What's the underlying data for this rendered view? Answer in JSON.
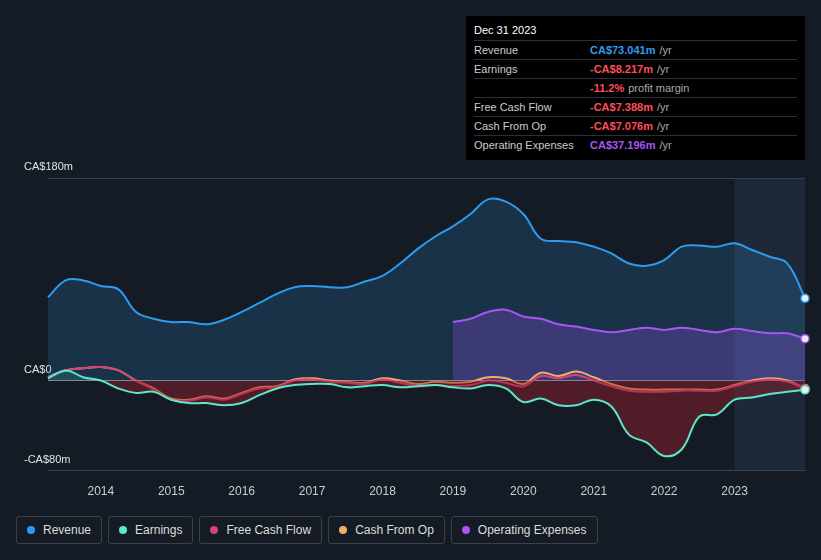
{
  "chart_data": {
    "type": "line",
    "x": [
      2013.25,
      2013.5,
      2013.75,
      2014,
      2014.25,
      2014.5,
      2014.75,
      2015,
      2015.25,
      2015.5,
      2015.75,
      2016,
      2016.25,
      2016.5,
      2016.75,
      2017,
      2017.25,
      2017.5,
      2017.75,
      2018,
      2018.25,
      2018.5,
      2018.75,
      2019,
      2019.25,
      2019.5,
      2019.75,
      2020,
      2020.25,
      2020.5,
      2020.75,
      2021,
      2021.25,
      2021.5,
      2021.75,
      2022,
      2022.25,
      2022.5,
      2022.75,
      2023,
      2023.25,
      2023.5,
      2023.75,
      2024
    ],
    "series": [
      {
        "name": "Revenue",
        "color": "#2d9cf0",
        "values": [
          74,
          89,
          89,
          84,
          81,
          61,
          55,
          52,
          52,
          50,
          54,
          61,
          69,
          77,
          83,
          84,
          83,
          83,
          88,
          93,
          104,
          117,
          128,
          137,
          148,
          161,
          159,
          148,
          126,
          124,
          123,
          119,
          113,
          104,
          102,
          107,
          119,
          120,
          119,
          122,
          116,
          110,
          104,
          73.041
        ]
      },
      {
        "name": "Earnings",
        "color": "#5ee6c8",
        "values": [
          2,
          9,
          3,
          0,
          -7,
          -11,
          -10,
          -17,
          -20,
          -20,
          -22,
          -20,
          -13,
          -7,
          -4,
          -3,
          -3,
          -6,
          -5,
          -4,
          -6,
          -5,
          -4,
          -6,
          -7,
          -4,
          -7,
          -19,
          -16,
          -22,
          -22,
          -17,
          -23,
          -48,
          -55,
          -67,
          -61,
          -32,
          -30,
          -17,
          -15,
          -12,
          -10,
          -8.217
        ]
      },
      {
        "name": "Free Cash Flow",
        "color": "#d6427a",
        "values": [
          3,
          9,
          11,
          12,
          9,
          0,
          -8,
          -17,
          -18,
          -15,
          -17,
          -12,
          -7,
          -6,
          0,
          1,
          -1,
          -2,
          -3,
          1,
          -2,
          -5,
          -4,
          -5,
          -4,
          0,
          -2,
          -5,
          4,
          2,
          5,
          0,
          -5,
          -9,
          -10,
          -10,
          -9,
          -9,
          -9,
          -5,
          -1,
          1,
          -1,
          -7.388
        ]
      },
      {
        "name": "Cash From Op",
        "color": "#f0b060",
        "values": [
          3,
          9,
          11,
          12,
          9,
          0,
          -7,
          -16,
          -17,
          -14,
          -16,
          -11,
          -6,
          -5,
          1,
          2,
          0,
          -1,
          -2,
          2,
          0,
          -3,
          -1,
          -2,
          -1,
          3,
          2,
          -3,
          7,
          4,
          8,
          3,
          -3,
          -7,
          -8,
          -8,
          -8,
          -8,
          -8,
          -4,
          0,
          2,
          0,
          -7.076
        ]
      },
      {
        "name": "Operating Expenses",
        "color": "#a855f7",
        "values": [
          null,
          null,
          null,
          null,
          null,
          null,
          null,
          null,
          null,
          null,
          null,
          null,
          null,
          null,
          null,
          null,
          null,
          null,
          null,
          null,
          null,
          null,
          null,
          52,
          55,
          61,
          63,
          57,
          55,
          50,
          48,
          45,
          43,
          45,
          47,
          45,
          47,
          45,
          43,
          46,
          44,
          42,
          42,
          37.196
        ]
      }
    ],
    "xlim": [
      2013.25,
      2024
    ],
    "xticks": [
      2014,
      2015,
      2016,
      2017,
      2018,
      2019,
      2020,
      2021,
      2022,
      2023
    ],
    "ylim": [
      -80,
      180
    ],
    "yticks": [
      {
        "value": -80,
        "label": "-CA$80m"
      },
      {
        "value": 0,
        "label": "CA$0"
      },
      {
        "value": 180,
        "label": "CA$180m"
      }
    ],
    "grid": true,
    "legend": "bottom",
    "annotations": {
      "date": "Dec 31 2023",
      "rows": [
        {
          "label": "Revenue",
          "value": "CA$73.041m",
          "unit": "/yr",
          "color": "#2d9cf0"
        },
        {
          "label": "Earnings",
          "value": "-CA$8.217m",
          "unit": "/yr",
          "color": "#ff4d5a"
        },
        {
          "value": "-11.2%",
          "unit": "profit margin",
          "color": "#ff4d5a"
        },
        {
          "label": "Free Cash Flow",
          "value": "-CA$7.388m",
          "unit": "/yr",
          "color": "#ff4d5a"
        },
        {
          "label": "Cash From Op",
          "value": "-CA$7.076m",
          "unit": "/yr",
          "color": "#ff4d5a"
        },
        {
          "label": "Operating Expenses",
          "value": "CA$37.196m",
          "unit": "/yr",
          "color": "#a855f7"
        }
      ]
    }
  }
}
